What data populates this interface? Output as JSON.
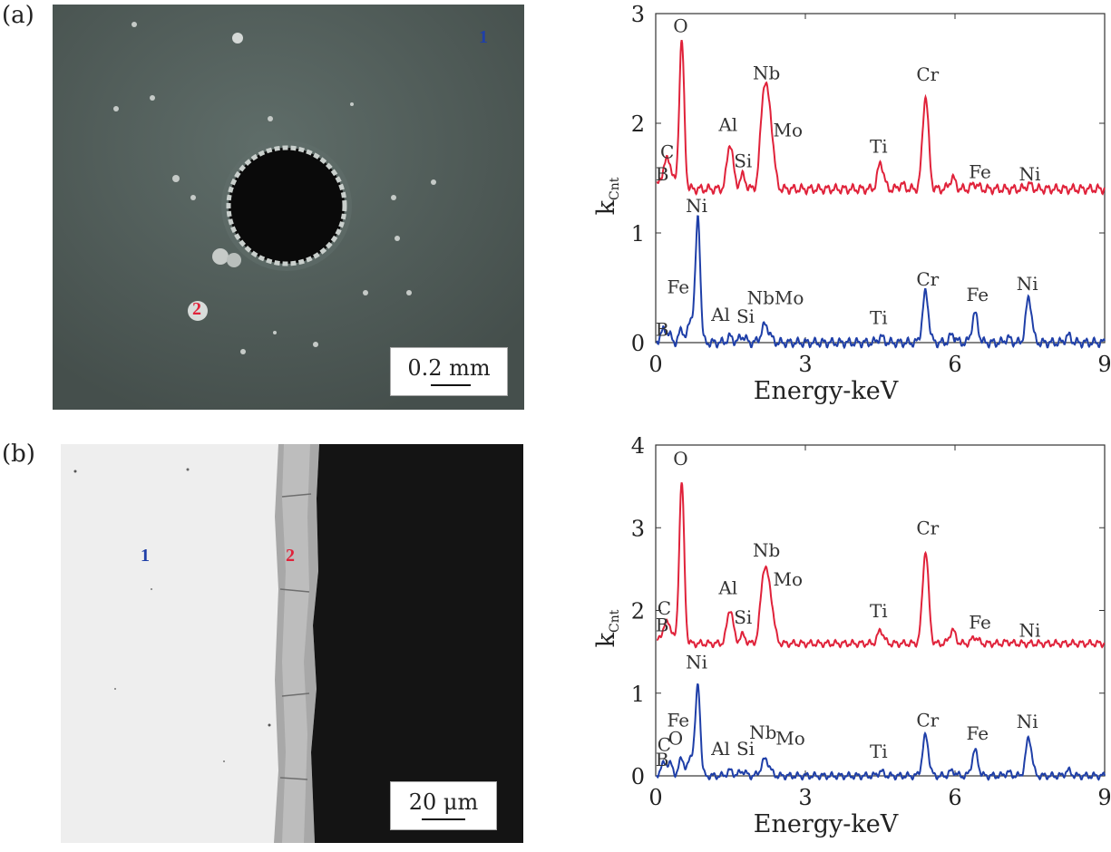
{
  "panels": {
    "a": {
      "label": "(a)",
      "sem": {
        "scale_text": "0.2 mm",
        "marker1": "1",
        "marker2": "2"
      }
    },
    "b": {
      "label": "(b)",
      "sem": {
        "scale_text": "20 μm",
        "marker1": "1",
        "marker2": "2"
      }
    }
  },
  "colors": {
    "point1": "#1f3fa8",
    "point2": "#e0223a"
  },
  "chart_data": [
    {
      "type": "line",
      "panel": "a",
      "xlabel": "Energy-keV",
      "ylabel": "k",
      "ylabel_sub": "Cnt",
      "xlim": [
        0,
        9
      ],
      "ylim": [
        0,
        3
      ],
      "xticks": [
        0,
        3,
        6,
        9
      ],
      "yticks": [
        0,
        1,
        2,
        3
      ],
      "series": [
        {
          "color": "#e0223a",
          "baseline": 1.4,
          "peaks": [
            [
              0.18,
              0.12,
              0.06
            ],
            [
              0.28,
              0.2,
              0.06
            ],
            [
              0.52,
              1.35,
              0.05
            ],
            [
              1.49,
              0.42,
              0.06
            ],
            [
              1.74,
              0.12,
              0.06
            ],
            [
              2.17,
              0.85,
              0.07
            ],
            [
              2.3,
              0.55,
              0.07
            ],
            [
              4.51,
              0.24,
              0.06
            ],
            [
              4.93,
              0.04,
              0.06
            ],
            [
              5.41,
              0.85,
              0.06
            ],
            [
              5.95,
              0.1,
              0.06
            ],
            [
              6.4,
              0.05,
              0.06
            ],
            [
              7.48,
              0.04,
              0.06
            ]
          ],
          "labels": [
            {
              "text": "O",
              "x": 0.5,
              "y": 2.83
            },
            {
              "text": "C",
              "x": 0.23,
              "y": 1.68
            },
            {
              "text": "B",
              "x": 0.13,
              "y": 1.48
            },
            {
              "text": "Al",
              "x": 1.45,
              "y": 1.93
            },
            {
              "text": "Si",
              "x": 1.75,
              "y": 1.6
            },
            {
              "text": "Nb",
              "x": 2.22,
              "y": 2.4
            },
            {
              "text": "Mo",
              "x": 2.65,
              "y": 1.88
            },
            {
              "text": "Ti",
              "x": 4.47,
              "y": 1.73
            },
            {
              "text": "Cr",
              "x": 5.45,
              "y": 2.39
            },
            {
              "text": "Fe",
              "x": 6.5,
              "y": 1.5
            },
            {
              "text": "Ni",
              "x": 7.5,
              "y": 1.48
            }
          ]
        },
        {
          "color": "#1f3fa8",
          "baseline": 0.0,
          "peaks": [
            [
              0.18,
              0.06,
              0.05
            ],
            [
              0.28,
              0.04,
              0.05
            ],
            [
              0.52,
              0.12,
              0.05
            ],
            [
              0.7,
              0.2,
              0.05
            ],
            [
              0.85,
              1.1,
              0.045
            ],
            [
              0.78,
              0.15,
              0.04
            ],
            [
              1.49,
              0.05,
              0.06
            ],
            [
              1.74,
              0.06,
              0.06
            ],
            [
              2.2,
              0.16,
              0.08
            ],
            [
              4.51,
              0.05,
              0.06
            ],
            [
              5.41,
              0.45,
              0.06
            ],
            [
              5.95,
              0.07,
              0.06
            ],
            [
              6.4,
              0.26,
              0.06
            ],
            [
              7.06,
              0.04,
              0.06
            ],
            [
              7.48,
              0.41,
              0.06
            ],
            [
              8.27,
              0.06,
              0.06
            ]
          ],
          "labels": [
            {
              "text": "Ni",
              "x": 0.82,
              "y": 1.19
            },
            {
              "text": "Fe",
              "x": 0.45,
              "y": 0.45
            },
            {
              "text": "B",
              "x": 0.13,
              "y": 0.06
            },
            {
              "text": "Al",
              "x": 1.3,
              "y": 0.2
            },
            {
              "text": "Si",
              "x": 1.8,
              "y": 0.18
            },
            {
              "text": "NbMo",
              "x": 2.4,
              "y": 0.35
            },
            {
              "text": "Ti",
              "x": 4.47,
              "y": 0.17
            },
            {
              "text": "Cr",
              "x": 5.45,
              "y": 0.52
            },
            {
              "text": "Fe",
              "x": 6.45,
              "y": 0.38
            },
            {
              "text": "Ni",
              "x": 7.45,
              "y": 0.48
            }
          ]
        }
      ]
    },
    {
      "type": "line",
      "panel": "b",
      "xlabel": "Energy-keV",
      "ylabel": "k",
      "ylabel_sub": "Cnt",
      "xlim": [
        0,
        9
      ],
      "ylim": [
        0,
        4
      ],
      "xticks": [
        0,
        3,
        6,
        9
      ],
      "yticks": [
        0,
        1,
        2,
        3,
        4
      ],
      "series": [
        {
          "color": "#e0223a",
          "baseline": 1.6,
          "peaks": [
            [
              0.18,
              0.12,
              0.06
            ],
            [
              0.28,
              0.18,
              0.06
            ],
            [
              0.52,
              1.95,
              0.05
            ],
            [
              1.49,
              0.42,
              0.06
            ],
            [
              1.74,
              0.1,
              0.06
            ],
            [
              2.17,
              0.82,
              0.07
            ],
            [
              2.3,
              0.5,
              0.07
            ],
            [
              4.51,
              0.16,
              0.06
            ],
            [
              5.41,
              1.12,
              0.06
            ],
            [
              5.95,
              0.16,
              0.06
            ],
            [
              6.4,
              0.08,
              0.06
            ],
            [
              7.06,
              0.02,
              0.06
            ]
          ],
          "labels": [
            {
              "text": "O",
              "x": 0.5,
              "y": 3.76
            },
            {
              "text": "C",
              "x": 0.17,
              "y": 1.95
            },
            {
              "text": "B",
              "x": 0.13,
              "y": 1.75
            },
            {
              "text": "Al",
              "x": 1.45,
              "y": 2.2
            },
            {
              "text": "Si",
              "x": 1.75,
              "y": 1.84
            },
            {
              "text": "Nb",
              "x": 2.22,
              "y": 2.65
            },
            {
              "text": "Mo",
              "x": 2.65,
              "y": 2.3
            },
            {
              "text": "Ti",
              "x": 4.47,
              "y": 1.92
            },
            {
              "text": "Cr",
              "x": 5.45,
              "y": 2.92
            },
            {
              "text": "Fe",
              "x": 6.5,
              "y": 1.78
            },
            {
              "text": "Ni",
              "x": 7.5,
              "y": 1.68
            }
          ]
        },
        {
          "color": "#1f3fa8",
          "baseline": 0.0,
          "peaks": [
            [
              0.18,
              0.1,
              0.05
            ],
            [
              0.3,
              0.12,
              0.05
            ],
            [
              0.52,
              0.22,
              0.05
            ],
            [
              0.7,
              0.22,
              0.05
            ],
            [
              0.85,
              1.05,
              0.045
            ],
            [
              0.78,
              0.18,
              0.04
            ],
            [
              1.49,
              0.06,
              0.06
            ],
            [
              1.74,
              0.06,
              0.06
            ],
            [
              2.2,
              0.2,
              0.08
            ],
            [
              4.51,
              0.05,
              0.06
            ],
            [
              5.41,
              0.48,
              0.06
            ],
            [
              5.95,
              0.06,
              0.06
            ],
            [
              6.4,
              0.3,
              0.06
            ],
            [
              7.06,
              0.04,
              0.06
            ],
            [
              7.48,
              0.46,
              0.06
            ],
            [
              8.27,
              0.06,
              0.06
            ]
          ],
          "labels": [
            {
              "text": "Ni",
              "x": 0.82,
              "y": 1.3
            },
            {
              "text": "Fe",
              "x": 0.45,
              "y": 0.6
            },
            {
              "text": "O",
              "x": 0.4,
              "y": 0.38
            },
            {
              "text": "C",
              "x": 0.17,
              "y": 0.3
            },
            {
              "text": "B",
              "x": 0.13,
              "y": 0.12
            },
            {
              "text": "Al",
              "x": 1.3,
              "y": 0.25
            },
            {
              "text": "Si",
              "x": 1.8,
              "y": 0.25
            },
            {
              "text": "Nb",
              "x": 2.15,
              "y": 0.45
            },
            {
              "text": "Mo",
              "x": 2.7,
              "y": 0.38
            },
            {
              "text": "Ti",
              "x": 4.47,
              "y": 0.22
            },
            {
              "text": "Cr",
              "x": 5.45,
              "y": 0.6
            },
            {
              "text": "Fe",
              "x": 6.45,
              "y": 0.44
            },
            {
              "text": "Ni",
              "x": 7.45,
              "y": 0.58
            }
          ]
        }
      ]
    }
  ]
}
